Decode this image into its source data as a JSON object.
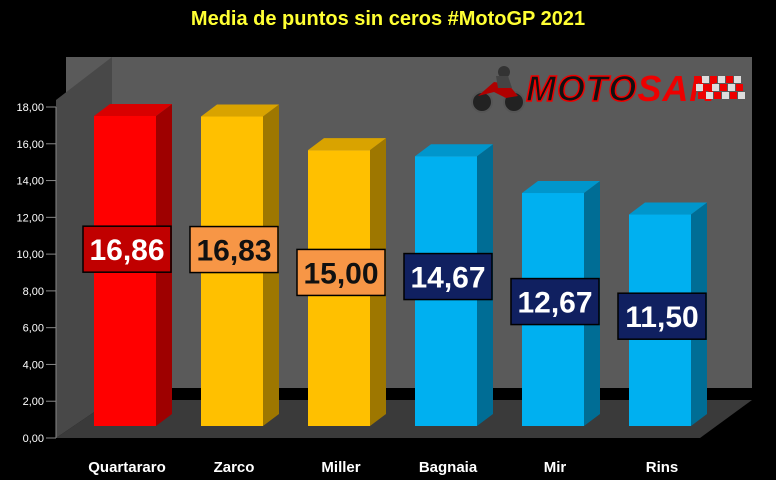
{
  "title": "Media de puntos sin ceros #MotoGP 2021",
  "logo": {
    "text_part1": "MOTO",
    "text_part2": "SAN",
    "icon": "motorcycle-rider-icon"
  },
  "colors": {
    "red": "#ff0000",
    "yellow": "#ffc000",
    "blue": "#00b0f0",
    "label_red": "#c00000",
    "label_orange": "#f79646",
    "label_navy": "#102060"
  },
  "chart_data": {
    "type": "bar",
    "title": "Media de puntos sin ceros #MotoGP 2021",
    "categories": [
      "Quartararo",
      "Zarco",
      "Miller",
      "Bagnaia",
      "Mir",
      "Rins"
    ],
    "values": [
      16.86,
      16.83,
      15.0,
      14.67,
      12.67,
      11.5
    ],
    "data_labels": [
      "16,86",
      "16,83",
      "15,00",
      "14,67",
      "12,67",
      "11,50"
    ],
    "bar_colors": [
      "red",
      "yellow",
      "yellow",
      "blue",
      "blue",
      "blue"
    ],
    "label_colors": [
      "label_red",
      "label_orange",
      "label_orange",
      "label_navy",
      "label_navy",
      "label_navy"
    ],
    "ylim": [
      0,
      18
    ],
    "yticks": [
      "0,00",
      "2,00",
      "4,00",
      "6,00",
      "8,00",
      "10,00",
      "12,00",
      "14,00",
      "16,00",
      "18,00"
    ],
    "grid": false,
    "style": "3d-column"
  }
}
